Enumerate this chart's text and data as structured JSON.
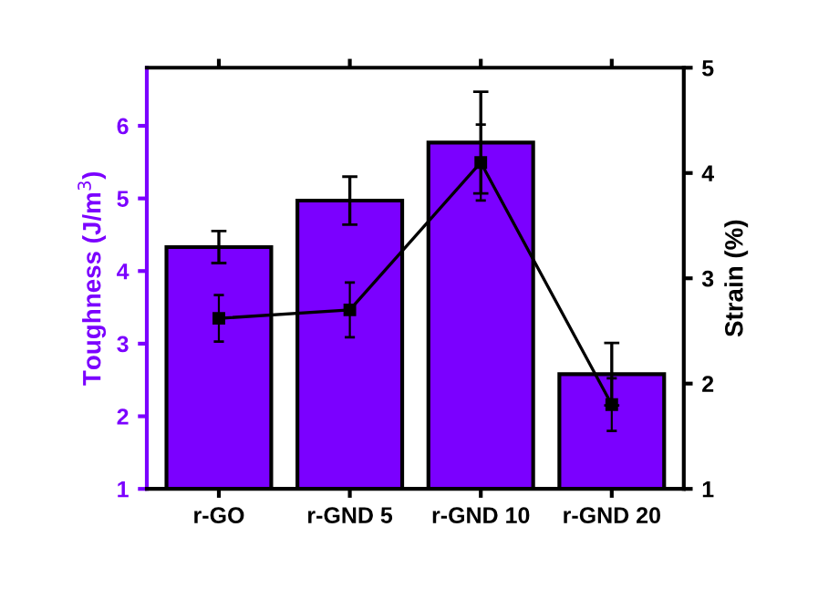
{
  "chart_data": {
    "type": "bar",
    "categories": [
      "r-GO",
      "r-GND 5",
      "r-GND 10",
      "r-GND 20"
    ],
    "ylabel": "Toughness (J/m$^{3}$)",
    "y2label": "Strain (%)",
    "ylim": [
      1,
      6.8
    ],
    "yticks": [
      1,
      2,
      3,
      4,
      5,
      6
    ],
    "y2lim": [
      1,
      5
    ],
    "y2ticks": [
      1,
      2,
      3,
      4,
      5
    ],
    "grid": false,
    "legend": false,
    "series": [
      {
        "color": "#7b00ff",
        "values": [
          4.33,
          4.97,
          5.77,
          2.58
        ],
        "errors": [
          0.22,
          0.33,
          0.7,
          0.43
        ]
      },
      {
        "type": "line",
        "axis": "y2",
        "color": "#000000",
        "marker": "square",
        "line_style": "solid",
        "values": [
          2.62,
          2.7,
          4.1,
          1.8
        ],
        "errors": [
          0.22,
          0.26,
          0.36,
          0.25
        ]
      }
    ]
  }
}
